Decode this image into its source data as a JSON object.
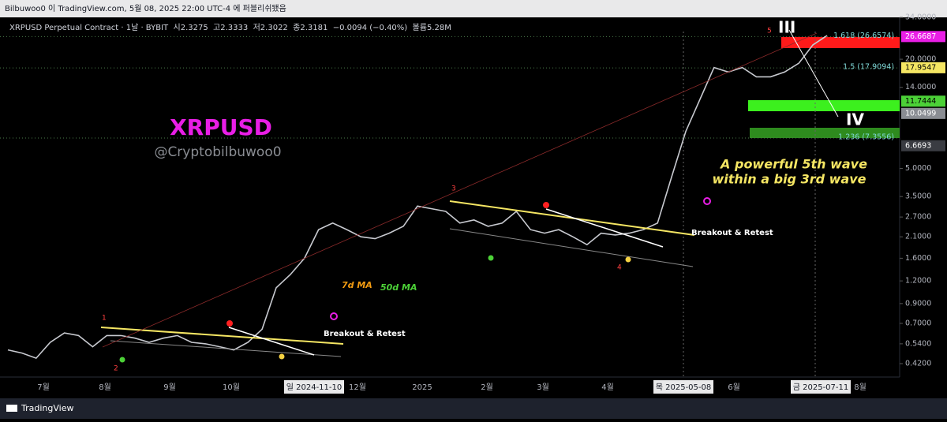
{
  "header": {
    "publish_line": "Bilbuwoo0 이 TradingView.com, 5월 08, 2025 22:00 UTC-4 에 퍼블리쉬됐음",
    "symbol_line": "XRPUSD Perpetual Contract · 1날 · BYBIT  시2.3275  고2.3333  저2.3022  종2.3181  −0.0094 (−0.40%)  볼륨5.28M"
  },
  "chart_data": {
    "type": "line",
    "title": "XRPUSD",
    "subtitle": "@Cryptobilbuwoo0",
    "log_scale": true,
    "color": "#c8cad0",
    "values": [
      0.5,
      0.48,
      0.45,
      0.55,
      0.62,
      0.6,
      0.52,
      0.6,
      0.6,
      0.58,
      0.55,
      0.58,
      0.6,
      0.55,
      0.54,
      0.52,
      0.5,
      0.55,
      0.65,
      1.1,
      1.3,
      1.6,
      2.3,
      2.5,
      2.3,
      2.1,
      2.05,
      2.2,
      2.4,
      3.1,
      3.0,
      2.9,
      2.5,
      2.6,
      2.4,
      2.5,
      2.9,
      2.3,
      2.2,
      2.3,
      2.1,
      1.9,
      2.2,
      2.15,
      2.2,
      2.3,
      2.5,
      4.5,
      8,
      12,
      18,
      17,
      18,
      16,
      16,
      17,
      19,
      24,
      27
    ],
    "ylim": [
      0.365,
      36.5
    ],
    "yticks": [
      {
        "value": 34,
        "label": "34.0000"
      },
      {
        "value": 20,
        "label": "20.0000"
      },
      {
        "value": 14,
        "label": "14.0000"
      },
      {
        "value": 5,
        "label": "5.0000"
      },
      {
        "value": 3.5,
        "label": "3.5000"
      },
      {
        "value": 2.7,
        "label": "2.7000"
      },
      {
        "value": 2.1,
        "label": "2.1000"
      },
      {
        "value": 1.6,
        "label": "1.6000"
      },
      {
        "value": 1.2,
        "label": "1.2000"
      },
      {
        "value": 0.9,
        "label": "0.9000"
      },
      {
        "value": 0.7,
        "label": "0.7000"
      },
      {
        "value": 0.54,
        "label": "0.5400"
      },
      {
        "value": 0.42,
        "label": "0.4200"
      }
    ],
    "x_labels": [
      {
        "label": "7월"
      },
      {
        "label": "8월"
      },
      {
        "label": "9월"
      },
      {
        "label": "10월"
      },
      {
        "label": "일 2024-11-10",
        "highlight": true
      },
      {
        "label": "12월"
      },
      {
        "label": "2025"
      },
      {
        "label": "2월"
      },
      {
        "label": "3월"
      },
      {
        "label": "4월"
      },
      {
        "label": "목 2025-05-08",
        "highlight": true
      },
      {
        "label": "6월"
      },
      {
        "label": "금 2025-07-11",
        "highlight": true
      },
      {
        "label": "8월"
      }
    ],
    "price_markers": [
      {
        "value": 26.6687,
        "color": "#e91ee6"
      },
      {
        "value": 17.9547,
        "color": "#f5e663"
      },
      {
        "value": 11.7444,
        "color": "#4cd137"
      },
      {
        "value": 10.0499,
        "color": "#8a8d93"
      },
      {
        "value": 6.6693,
        "color": "#3a3c42"
      }
    ],
    "fib_levels": [
      {
        "label": "1.618 (26.6574)",
        "value": 26.6574
      },
      {
        "label": "1.5 (17.9094)",
        "value": 17.9094
      },
      {
        "label": "1.236 (7.3556)",
        "value": 7.3556
      }
    ],
    "annotations": {
      "wave_1": "1",
      "wave_2": "2",
      "wave_3": "3",
      "wave_4": "4",
      "wave_5": "5",
      "wave_III": "III",
      "wave_IV": "IV",
      "ma7": "7d MA",
      "ma50": "50d MA",
      "breakout_1": "Breakout & Retest",
      "breakout_2": "Breakout & Retest",
      "callout_line1": "A powerful 5th wave",
      "callout_line2": "within a big 3rd wave"
    }
  },
  "footer": {
    "brand": "TradingView"
  }
}
